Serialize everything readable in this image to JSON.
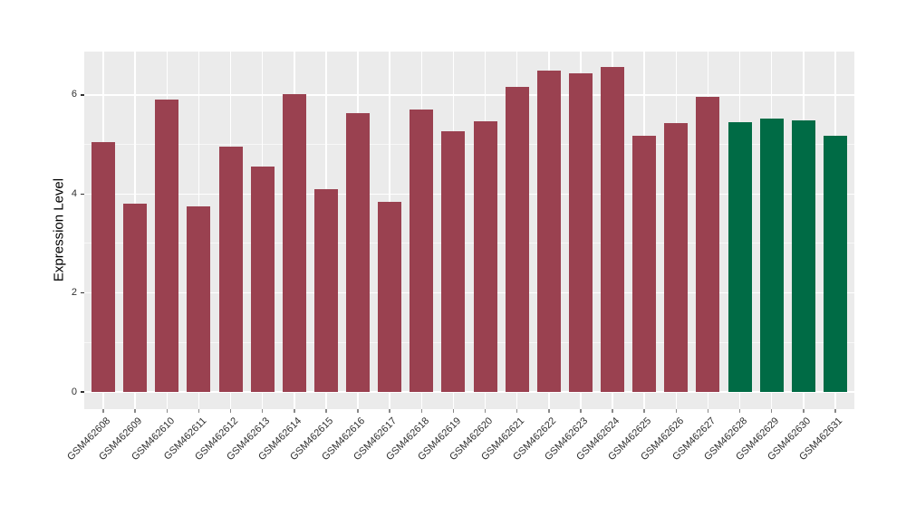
{
  "figure": {
    "background_color": "#FFFFFF",
    "panel_background_color": "#EBEBEB",
    "gridline_color": "#FFFFFF"
  },
  "chart_data": {
    "type": "bar",
    "title": "",
    "xlabel": "",
    "ylabel": "Expression Level",
    "categories": [
      "GSM462608",
      "GSM462609",
      "GSM462610",
      "GSM462611",
      "GSM462612",
      "GSM462613",
      "GSM462614",
      "GSM462615",
      "GSM462616",
      "GSM462617",
      "GSM462618",
      "GSM462619",
      "GSM462620",
      "GSM462621",
      "GSM462622",
      "GSM462623",
      "GSM462624",
      "GSM462625",
      "GSM462626",
      "GSM462627",
      "GSM462628",
      "GSM462629",
      "GSM462630",
      "GSM462631"
    ],
    "values": [
      5.05,
      3.8,
      5.9,
      3.75,
      4.95,
      4.55,
      6.02,
      4.1,
      5.63,
      3.85,
      5.7,
      5.27,
      5.47,
      6.17,
      6.5,
      6.44,
      6.56,
      5.18,
      5.43,
      5.97,
      5.45,
      5.53,
      5.48,
      5.17
    ],
    "bar_colors": [
      "#9A4150",
      "#9A4150",
      "#9A4150",
      "#9A4150",
      "#9A4150",
      "#9A4150",
      "#9A4150",
      "#9A4150",
      "#9A4150",
      "#9A4150",
      "#9A4150",
      "#9A4150",
      "#9A4150",
      "#9A4150",
      "#9A4150",
      "#9A4150",
      "#9A4150",
      "#9A4150",
      "#9A4150",
      "#9A4150",
      "#006B45",
      "#006B45",
      "#006B45",
      "#006B45"
    ],
    "group_colors": {
      "red_group": "#9A4150",
      "green_group": "#006B45"
    },
    "ylim": [
      0,
      6.88
    ],
    "yticks": [
      0,
      2,
      4,
      6
    ],
    "ytick_labels": [
      "0",
      "2",
      "4",
      "6"
    ],
    "yminor": [
      1,
      3,
      5
    ],
    "x_tick_angle_deg": 45,
    "grid": true,
    "legend": false
  }
}
